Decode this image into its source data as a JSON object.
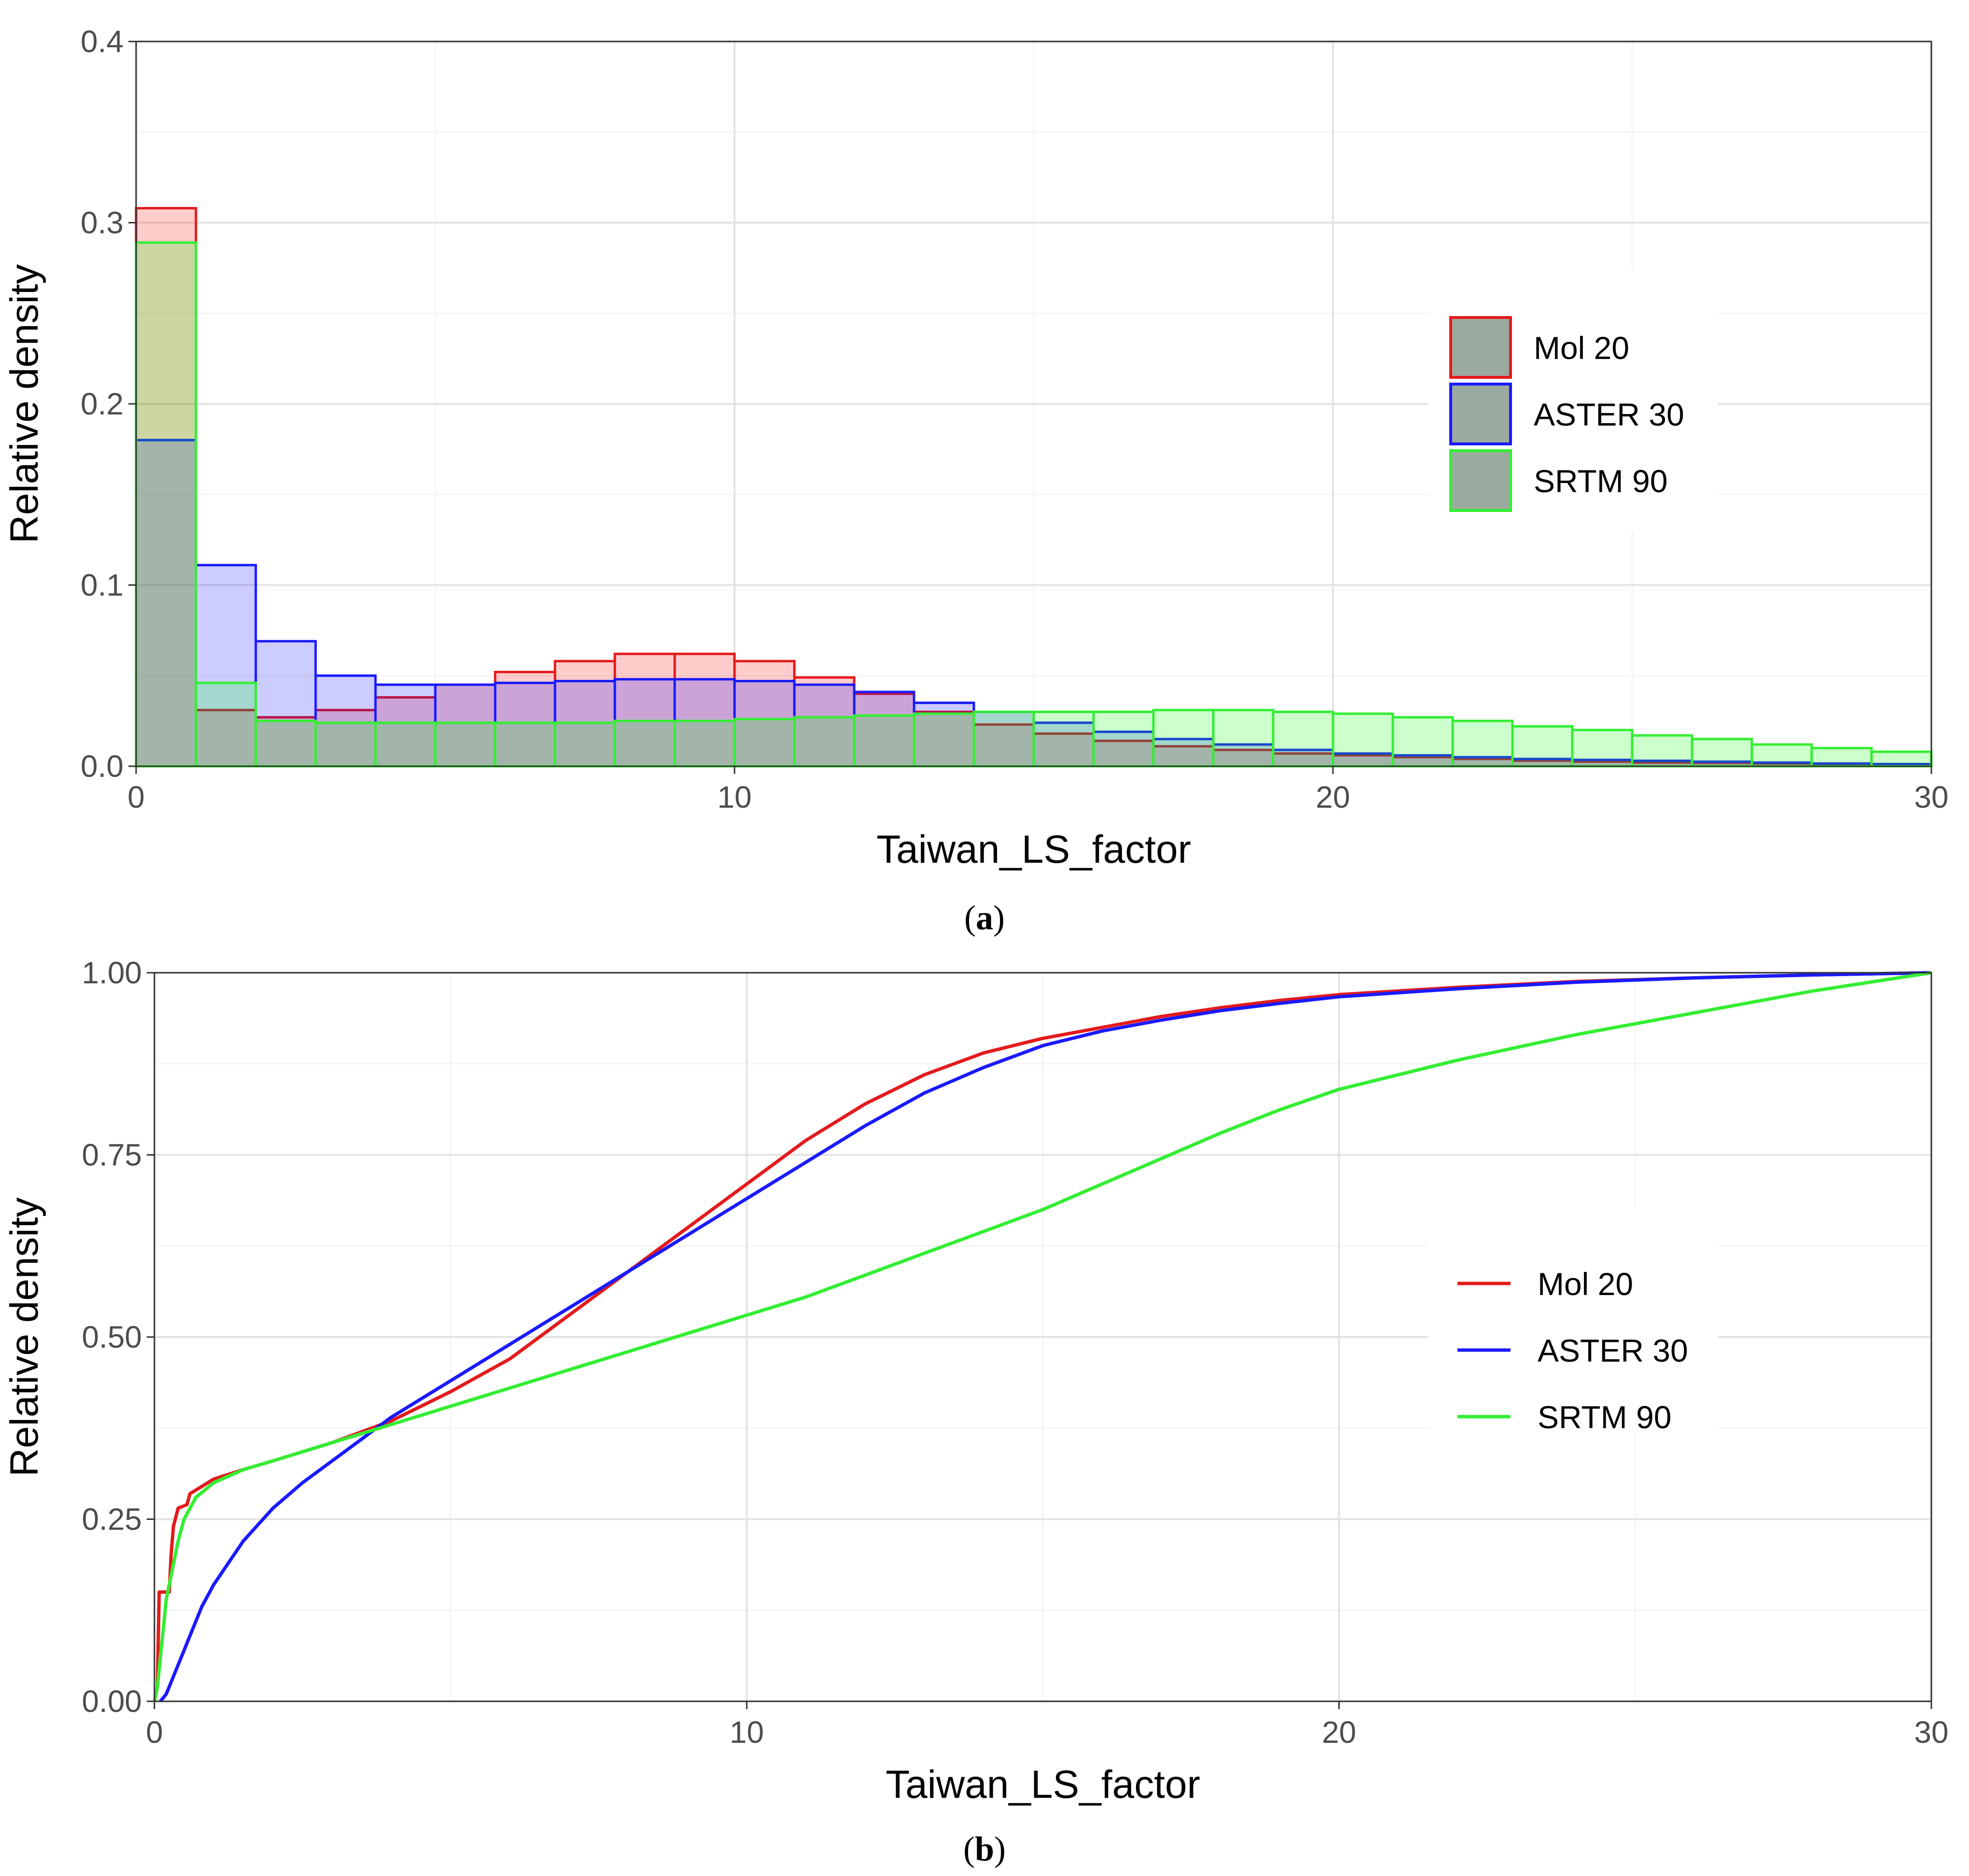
{
  "chart_data": [
    {
      "panel": "a",
      "type": "bar",
      "caption_letter": "a",
      "xlabel": "Taiwan_LS_factor",
      "ylabel": "Relative density",
      "xlim": [
        0,
        30
      ],
      "ylim": [
        0,
        0.4
      ],
      "x_ticks": [
        0,
        10,
        20,
        30
      ],
      "x_tick_labels": [
        "0",
        "10",
        "20",
        "30"
      ],
      "y_ticks": [
        0.0,
        0.1,
        0.2,
        0.3,
        0.4
      ],
      "y_tick_labels": [
        "0.0",
        "0.1",
        "0.2",
        "0.3",
        "0.4"
      ],
      "grid": true,
      "legend_position": "right",
      "bin_width": 1,
      "bin_starts": [
        0,
        1,
        2,
        3,
        4,
        5,
        6,
        7,
        8,
        9,
        10,
        11,
        12,
        13,
        14,
        15,
        16,
        17,
        18,
        19,
        20,
        21,
        22,
        23,
        24,
        25,
        26,
        27,
        28,
        29
      ],
      "series": [
        {
          "name": "Mol 20",
          "color": "#e41a1c",
          "fill": "rgba(255,0,0,0.2)",
          "values": [
            0.308,
            0.031,
            0.027,
            0.031,
            0.038,
            0.045,
            0.052,
            0.058,
            0.062,
            0.062,
            0.058,
            0.049,
            0.04,
            0.03,
            0.023,
            0.018,
            0.014,
            0.011,
            0.009,
            0.007,
            0.006,
            0.005,
            0.004,
            0.003,
            0.0025,
            0.002,
            0.0018,
            0.0015,
            0.0012,
            0.001
          ]
        },
        {
          "name": "ASTER 30",
          "color": "#1a1aff",
          "fill": "rgba(0,0,255,0.2)",
          "values": [
            0.18,
            0.111,
            0.069,
            0.05,
            0.045,
            0.045,
            0.046,
            0.047,
            0.048,
            0.048,
            0.047,
            0.045,
            0.041,
            0.035,
            0.03,
            0.024,
            0.019,
            0.015,
            0.012,
            0.009,
            0.007,
            0.006,
            0.005,
            0.004,
            0.0035,
            0.003,
            0.0025,
            0.002,
            0.0015,
            0.0012
          ]
        },
        {
          "name": "SRTM 90",
          "color": "#33ee33",
          "fill": "rgba(0,255,0,0.2)",
          "values": [
            0.289,
            0.046,
            0.025,
            0.024,
            0.024,
            0.024,
            0.024,
            0.024,
            0.025,
            0.025,
            0.026,
            0.027,
            0.028,
            0.029,
            0.03,
            0.03,
            0.03,
            0.031,
            0.031,
            0.03,
            0.029,
            0.027,
            0.025,
            0.022,
            0.02,
            0.017,
            0.015,
            0.012,
            0.01,
            0.008
          ]
        }
      ]
    },
    {
      "panel": "b",
      "type": "line",
      "caption_letter": "b",
      "xlabel": "Taiwan_LS_factor",
      "ylabel": "Relative density",
      "xlim": [
        0,
        30
      ],
      "ylim": [
        0,
        1
      ],
      "x_ticks": [
        0,
        10,
        20,
        30
      ],
      "x_tick_labels": [
        "0",
        "10",
        "20",
        "30"
      ],
      "y_ticks": [
        0.0,
        0.25,
        0.5,
        0.75,
        1.0
      ],
      "y_tick_labels": [
        "0.00",
        "0.25",
        "0.50",
        "0.75",
        "1.00"
      ],
      "grid": true,
      "legend_position": "right",
      "series": [
        {
          "name": "Mol 20",
          "color": "#e41a1c",
          "points": [
            [
              0,
              0
            ],
            [
              0.05,
              0.02
            ],
            [
              0.08,
              0.15
            ],
            [
              0.25,
              0.15
            ],
            [
              0.28,
              0.2
            ],
            [
              0.32,
              0.24
            ],
            [
              0.4,
              0.265
            ],
            [
              0.55,
              0.27
            ],
            [
              0.6,
              0.285
            ],
            [
              0.8,
              0.295
            ],
            [
              1,
              0.305
            ],
            [
              1.5,
              0.318
            ],
            [
              2,
              0.33
            ],
            [
              3,
              0.355
            ],
            [
              4,
              0.385
            ],
            [
              5,
              0.425
            ],
            [
              6,
              0.47
            ],
            [
              7,
              0.53
            ],
            [
              8,
              0.59
            ],
            [
              9,
              0.65
            ],
            [
              10,
              0.71
            ],
            [
              11,
              0.77
            ],
            [
              12,
              0.82
            ],
            [
              13,
              0.86
            ],
            [
              14,
              0.89
            ],
            [
              15,
              0.91
            ],
            [
              16,
              0.925
            ],
            [
              17,
              0.94
            ],
            [
              18,
              0.952
            ],
            [
              19,
              0.962
            ],
            [
              20,
              0.97
            ],
            [
              22,
              0.98
            ],
            [
              24,
              0.988
            ],
            [
              26,
              0.993
            ],
            [
              28,
              0.997
            ],
            [
              30,
              1.0
            ]
          ]
        },
        {
          "name": "ASTER 30",
          "color": "#1a1aff",
          "points": [
            [
              0.1,
              0
            ],
            [
              0.2,
              0.01
            ],
            [
              0.3,
              0.03
            ],
            [
              0.4,
              0.05
            ],
            [
              0.5,
              0.07
            ],
            [
              0.6,
              0.09
            ],
            [
              0.8,
              0.13
            ],
            [
              1,
              0.16
            ],
            [
              1.5,
              0.22
            ],
            [
              2,
              0.265
            ],
            [
              2.5,
              0.3
            ],
            [
              3,
              0.33
            ],
            [
              4,
              0.39
            ],
            [
              5,
              0.44
            ],
            [
              6,
              0.49
            ],
            [
              7,
              0.54
            ],
            [
              8,
              0.59
            ],
            [
              9,
              0.64
            ],
            [
              10,
              0.69
            ],
            [
              11,
              0.74
            ],
            [
              12,
              0.79
            ],
            [
              13,
              0.835
            ],
            [
              14,
              0.87
            ],
            [
              15,
              0.9
            ],
            [
              16,
              0.92
            ],
            [
              17,
              0.935
            ],
            [
              18,
              0.948
            ],
            [
              19,
              0.958
            ],
            [
              20,
              0.967
            ],
            [
              22,
              0.978
            ],
            [
              24,
              0.987
            ],
            [
              26,
              0.993
            ],
            [
              28,
              0.997
            ],
            [
              30,
              1.0
            ]
          ]
        },
        {
          "name": "SRTM 90",
          "color": "#33ee33",
          "points": [
            [
              0,
              0
            ],
            [
              0.05,
              0.02
            ],
            [
              0.1,
              0.06
            ],
            [
              0.15,
              0.1
            ],
            [
              0.2,
              0.14
            ],
            [
              0.3,
              0.18
            ],
            [
              0.4,
              0.22
            ],
            [
              0.5,
              0.25
            ],
            [
              0.7,
              0.28
            ],
            [
              1,
              0.3
            ],
            [
              1.5,
              0.318
            ],
            [
              2,
              0.33
            ],
            [
              3,
              0.355
            ],
            [
              4,
              0.38
            ],
            [
              5,
              0.405
            ],
            [
              6,
              0.43
            ],
            [
              7,
              0.455
            ],
            [
              8,
              0.48
            ],
            [
              9,
              0.505
            ],
            [
              10,
              0.53
            ],
            [
              11,
              0.555
            ],
            [
              12,
              0.585
            ],
            [
              13,
              0.615
            ],
            [
              14,
              0.645
            ],
            [
              15,
              0.675
            ],
            [
              16,
              0.71
            ],
            [
              17,
              0.745
            ],
            [
              18,
              0.78
            ],
            [
              19,
              0.812
            ],
            [
              20,
              0.84
            ],
            [
              22,
              0.88
            ],
            [
              24,
              0.915
            ],
            [
              26,
              0.945
            ],
            [
              28,
              0.975
            ],
            [
              30,
              1.0
            ]
          ]
        }
      ]
    }
  ]
}
